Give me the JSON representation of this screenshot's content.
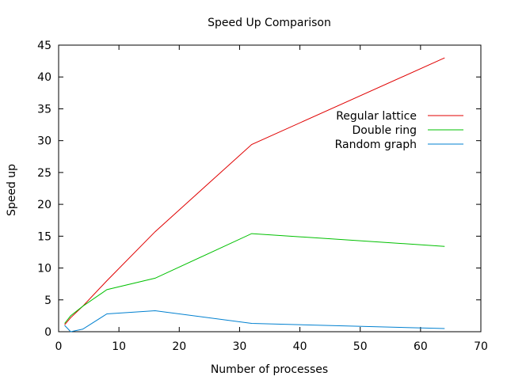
{
  "chart_data": {
    "type": "line",
    "title": "Speed Up Comparison",
    "xlabel": "Number of processes",
    "ylabel": "Speed up",
    "xlim": [
      0,
      70
    ],
    "ylim": [
      0,
      45
    ],
    "xticks": [
      0,
      10,
      20,
      30,
      40,
      50,
      60,
      70
    ],
    "yticks": [
      0,
      5,
      10,
      15,
      20,
      25,
      30,
      35,
      40,
      45
    ],
    "grid": false,
    "legend_position": "top-right",
    "series": [
      {
        "name": "Regular lattice",
        "color": "#e00000",
        "x": [
          1,
          2,
          4,
          8,
          16,
          32,
          64
        ],
        "y": [
          1.1,
          2.2,
          4.0,
          8.0,
          15.7,
          29.4,
          43.0
        ]
      },
      {
        "name": "Double ring",
        "color": "#00c000",
        "x": [
          1,
          2,
          4,
          8,
          16,
          32,
          64
        ],
        "y": [
          1.3,
          2.5,
          4.0,
          6.6,
          8.4,
          15.4,
          13.4
        ]
      },
      {
        "name": "Random graph",
        "color": "#0080d0",
        "x": [
          1,
          2,
          4,
          8,
          16,
          32,
          64
        ],
        "y": [
          1.0,
          0.0,
          0.4,
          2.8,
          3.3,
          1.3,
          0.5
        ]
      }
    ]
  }
}
